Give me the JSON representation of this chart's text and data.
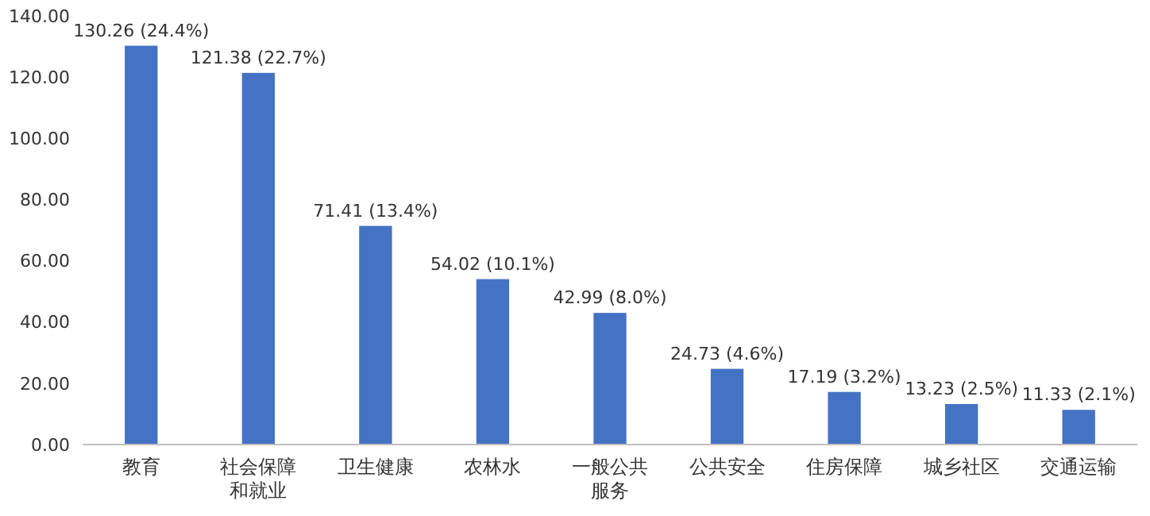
{
  "chart_data": {
    "type": "bar",
    "categories": [
      "教育",
      "社会保障和就业",
      "卫生健康",
      "农林水",
      "一般公共服务",
      "公共安全",
      "住房保障",
      "城乡社区",
      "交通运输"
    ],
    "values": [
      130.26,
      121.38,
      71.41,
      54.02,
      42.99,
      24.73,
      17.19,
      13.23,
      11.33
    ],
    "value_labels": [
      "130.26 (24.4%)",
      "121.38 (22.7%)",
      "71.41 (13.4%)",
      "54.02 (10.1%)",
      "42.99 (8.0%)",
      "24.73 (4.6%)",
      "17.19 (3.2%)",
      "13.23 (2.5%)",
      "11.33 (2.1%)"
    ],
    "color": "#4472c4",
    "ylim": [
      0,
      140
    ],
    "yticks": [
      {
        "value": 0,
        "label": "0.00"
      },
      {
        "value": 20,
        "label": "20.00"
      },
      {
        "value": 40,
        "label": "40.00"
      },
      {
        "value": 60,
        "label": "60.00"
      },
      {
        "value": 80,
        "label": "80.00"
      },
      {
        "value": 100,
        "label": "100.00"
      },
      {
        "value": 120,
        "label": "120.00"
      },
      {
        "value": 140,
        "label": "140.00"
      }
    ],
    "grid": false
  }
}
